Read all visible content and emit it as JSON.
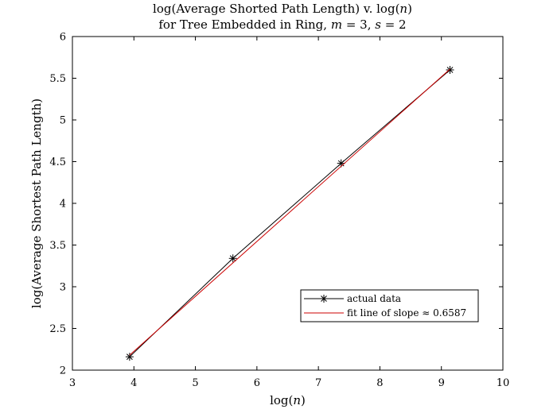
{
  "chart_data": {
    "type": "line",
    "title_line1": "log(Average Shorted Path Length) v. log(",
    "title_line1_var": "n",
    "title_line1_end": ")",
    "title_line2_pre": "for Tree Embedded in Ring, ",
    "title_line2_m_var": "m",
    "title_line2_m_val": " = 3, ",
    "title_line2_s_var": "s",
    "title_line2_s_val": " = 2",
    "xlabel_pre": "log(",
    "xlabel_var": "n",
    "xlabel_post": ")",
    "ylabel": "log(Average Shortest Path Length)",
    "xlim": [
      3,
      10
    ],
    "ylim": [
      2,
      6
    ],
    "xticks": [
      "3",
      "4",
      "5",
      "6",
      "7",
      "8",
      "9",
      "10"
    ],
    "yticks": [
      "2",
      "2.5",
      "3",
      "3.5",
      "4",
      "4.5",
      "5",
      "5.5",
      "6"
    ],
    "grid": false,
    "legend_position": "lower-right",
    "series": [
      {
        "name": "actual data",
        "color": "#000000",
        "marker": "asterisk",
        "x": [
          3.93,
          5.61,
          7.37,
          9.14
        ],
        "y": [
          2.16,
          3.34,
          4.48,
          5.6
        ]
      },
      {
        "name": "fit line of slope ≈ 0.6587",
        "color": "#cc0000",
        "marker": "none",
        "x": [
          3.93,
          9.14
        ],
        "y": [
          2.18,
          5.61
        ]
      }
    ]
  }
}
